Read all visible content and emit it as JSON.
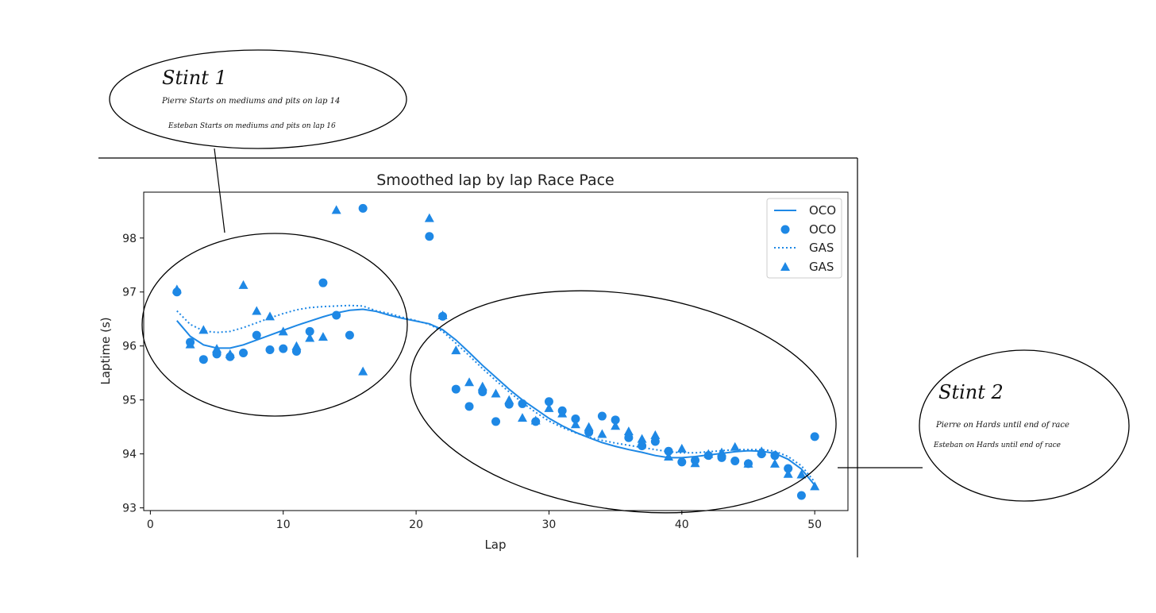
{
  "chart_data": {
    "type": "scatter",
    "title": "Smoothed lap by lap Race Pace",
    "xlabel": "Lap",
    "ylabel": "Laptime (s)",
    "xlim": [
      -0.5,
      52.5
    ],
    "ylim": [
      92.95,
      98.85
    ],
    "xticks": [
      0,
      10,
      20,
      30,
      40,
      50
    ],
    "yticks": [
      93,
      94,
      95,
      96,
      97,
      98
    ],
    "grid": false,
    "legend_position": "top-right",
    "color": "#1e88e5",
    "series": [
      {
        "name": "OCO",
        "kind": "line",
        "style": "solid",
        "x": [
          2,
          3,
          4,
          5,
          6,
          7,
          8,
          9,
          10,
          11,
          12,
          13,
          14,
          15,
          16,
          17,
          18,
          19,
          20,
          21,
          22,
          23,
          24,
          25,
          26,
          27,
          28,
          29,
          30,
          31,
          32,
          33,
          34,
          35,
          36,
          37,
          38,
          39,
          40,
          41,
          42,
          43,
          44,
          45,
          46,
          47,
          48,
          49,
          50
        ],
        "y": [
          96.47,
          96.18,
          96.02,
          95.96,
          95.96,
          96.02,
          96.11,
          96.2,
          96.29,
          96.38,
          96.46,
          96.54,
          96.61,
          96.66,
          96.68,
          96.64,
          96.57,
          96.51,
          96.46,
          96.41,
          96.3,
          96.11,
          95.88,
          95.64,
          95.42,
          95.2,
          95.0,
          94.83,
          94.66,
          94.52,
          94.4,
          94.3,
          94.21,
          94.14,
          94.08,
          94.03,
          93.97,
          93.93,
          93.93,
          93.95,
          93.98,
          94.01,
          94.04,
          94.06,
          94.05,
          94.01,
          93.9,
          93.72,
          93.42
        ]
      },
      {
        "name": "OCO",
        "kind": "points",
        "marker": "circle",
        "x": [
          2,
          3,
          4,
          5,
          6,
          7,
          8,
          9,
          10,
          11,
          12,
          13,
          14,
          15,
          16,
          21,
          22,
          23,
          24,
          25,
          26,
          27,
          28,
          29,
          30,
          31,
          32,
          33,
          34,
          35,
          36,
          37,
          38,
          39,
          40,
          41,
          42,
          43,
          44,
          45,
          46,
          47,
          48,
          49,
          50
        ],
        "y": [
          97.0,
          96.07,
          95.75,
          95.85,
          95.8,
          95.87,
          96.2,
          95.93,
          95.95,
          95.9,
          96.27,
          97.17,
          96.57,
          96.2,
          98.55,
          98.03,
          96.55,
          95.2,
          94.88,
          95.15,
          94.6,
          94.92,
          94.93,
          94.6,
          94.97,
          94.8,
          94.65,
          94.4,
          94.7,
          94.63,
          94.3,
          94.15,
          94.23,
          94.05,
          93.85,
          93.88,
          93.97,
          93.93,
          93.87,
          93.82,
          94.0,
          93.97,
          93.73,
          93.23,
          94.32
        ]
      },
      {
        "name": "GAS",
        "kind": "line",
        "style": "dotted",
        "x": [
          2,
          3,
          4,
          5,
          6,
          7,
          8,
          9,
          10,
          11,
          12,
          13,
          14,
          15,
          16,
          17,
          18,
          19,
          20,
          21,
          22,
          23,
          24,
          25,
          26,
          27,
          28,
          29,
          30,
          31,
          32,
          33,
          34,
          35,
          36,
          37,
          38,
          39,
          40,
          41,
          42,
          43,
          44,
          45,
          46,
          47,
          48,
          49,
          50
        ],
        "y": [
          96.65,
          96.4,
          96.28,
          96.25,
          96.27,
          96.34,
          96.43,
          96.52,
          96.6,
          96.67,
          96.71,
          96.73,
          96.74,
          96.75,
          96.74,
          96.65,
          96.6,
          96.53,
          96.47,
          96.4,
          96.27,
          96.05,
          95.82,
          95.58,
          95.36,
          95.15,
          94.95,
          94.77,
          94.61,
          94.49,
          94.39,
          94.31,
          94.25,
          94.2,
          94.16,
          94.12,
          94.08,
          94.04,
          94.02,
          94.02,
          94.04,
          94.06,
          94.08,
          94.08,
          94.08,
          94.05,
          93.95,
          93.78,
          93.48
        ]
      },
      {
        "name": "GAS",
        "kind": "points",
        "marker": "triangle",
        "x": [
          2,
          3,
          4,
          5,
          6,
          7,
          8,
          9,
          10,
          11,
          12,
          13,
          14,
          16,
          21,
          22,
          23,
          24,
          25,
          26,
          27,
          28,
          29,
          30,
          31,
          32,
          33,
          34,
          35,
          36,
          37,
          38,
          39,
          40,
          41,
          42,
          43,
          44,
          45,
          46,
          47,
          48,
          49,
          50
        ],
        "y": [
          97.05,
          96.03,
          96.3,
          95.95,
          95.85,
          97.13,
          96.65,
          96.55,
          96.27,
          96.0,
          96.15,
          96.17,
          98.52,
          95.53,
          98.37,
          96.57,
          95.92,
          95.33,
          95.25,
          95.12,
          95.0,
          94.67,
          94.62,
          94.85,
          94.75,
          94.55,
          94.5,
          94.37,
          94.52,
          94.42,
          94.28,
          94.35,
          93.95,
          94.1,
          93.83,
          94.0,
          94.03,
          94.13,
          93.82,
          94.05,
          93.82,
          93.63,
          93.62,
          93.4
        ]
      }
    ],
    "legend": [
      {
        "label": "OCO",
        "type": "line"
      },
      {
        "label": "OCO",
        "type": "circle"
      },
      {
        "label": "GAS",
        "type": "dotted"
      },
      {
        "label": "GAS",
        "type": "triangle"
      }
    ]
  },
  "annotations": {
    "stint1": {
      "heading": "Stint 1",
      "line1": "Pierre Starts on mediums and pits on lap 14",
      "line2": "Esteban Starts on mediums and pits on lap 16"
    },
    "stint2": {
      "heading": "Stint 2",
      "line1": "Pierre on Hards until end of race",
      "line2": "Esteban on Hards until end of race"
    }
  }
}
